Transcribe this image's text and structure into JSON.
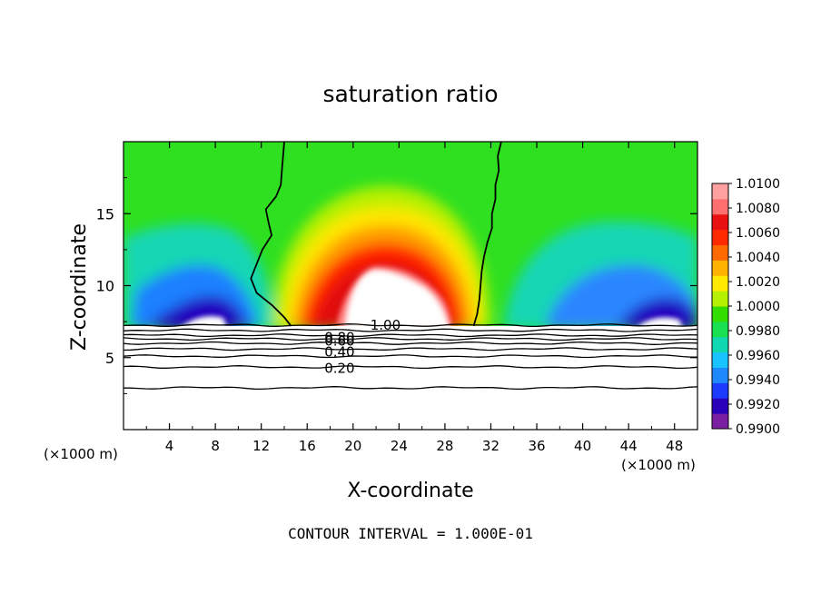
{
  "chart_data": {
    "type": "heatmap",
    "title": "saturation ratio",
    "xlabel": "X-coordinate",
    "ylabel": "Z-coordinate",
    "x_unit_label": "(×1000 m)",
    "z_unit_label": "(×1000 m)",
    "xlim": [
      0,
      50
    ],
    "ylim": [
      0,
      20
    ],
    "x_ticks": [
      4,
      8,
      12,
      16,
      20,
      24,
      28,
      32,
      36,
      40,
      44,
      48
    ],
    "x_tick_labels": [
      "4",
      "8",
      "12",
      "16",
      "20",
      "24",
      "28",
      "32",
      "36",
      "40",
      "44",
      "48"
    ],
    "y_ticks": [
      5,
      10,
      15
    ],
    "y_tick_labels": [
      "5",
      "10",
      "15"
    ],
    "colorbar": {
      "min": 0.99,
      "max": 1.01,
      "labels": [
        "1.0100",
        "1.0080",
        "1.0060",
        "1.0040",
        "1.0020",
        "1.0000",
        "0.9980",
        "0.9960",
        "0.9940",
        "0.9920",
        "0.9900"
      ],
      "colors": [
        "#7b1fa2",
        "#2a00b8",
        "#1b3cff",
        "#1e88ff",
        "#19c3ff",
        "#10d8b0",
        "#18e050",
        "#33dd00",
        "#b5f000",
        "#ffea00",
        "#ffb300",
        "#ff6a00",
        "#ff2a00",
        "#e81010",
        "#ff6f6f",
        "#ffa0a0"
      ]
    },
    "contour_labels": [
      {
        "text": "1.00",
        "x": 21.5,
        "z": 7.25
      },
      {
        "text": "0.80",
        "x": 17.5,
        "z": 6.4
      },
      {
        "text": "0.60",
        "x": 17.5,
        "z": 6.15
      },
      {
        "text": "0.40",
        "x": 17.5,
        "z": 5.4
      },
      {
        "text": "0.20",
        "x": 17.5,
        "z": 4.25
      }
    ],
    "lower_contours_z": [
      7.25,
      6.9,
      6.55,
      6.3,
      6.0,
      5.6,
      5.1,
      4.35,
      2.9
    ],
    "saturation_contour": {
      "left_z": [
        20,
        19,
        18,
        17,
        16.2,
        15.3,
        14.5,
        13.5,
        12.5,
        11.5,
        10.5,
        9.5,
        8.6,
        7.8,
        7.2
      ],
      "left_x": [
        14.0,
        13.9,
        13.8,
        13.7,
        13.3,
        12.4,
        12.6,
        12.9,
        12.1,
        11.6,
        11.1,
        11.6,
        13.0,
        14.0,
        14.6
      ],
      "right_z": [
        20,
        19,
        18,
        17,
        16,
        15,
        14,
        13,
        12,
        11,
        10,
        9,
        8,
        7.2
      ],
      "right_x": [
        32.9,
        32.6,
        32.7,
        32.4,
        32.4,
        32.1,
        32.1,
        31.7,
        31.4,
        31.2,
        31.1,
        31.0,
        30.8,
        30.5
      ]
    },
    "annotation": "CONTOUR INTERVAL = 1.000E-01"
  }
}
